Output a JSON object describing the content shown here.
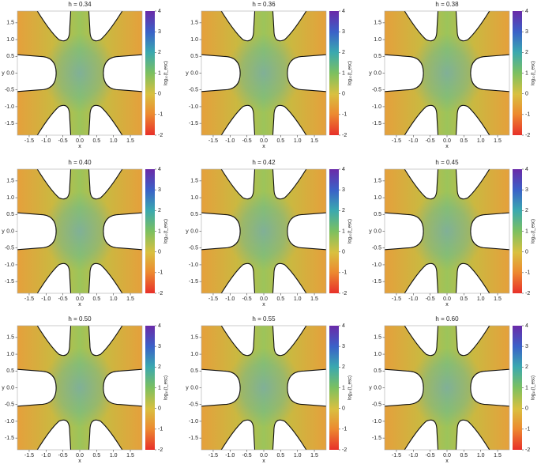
{
  "chart_data": [
    {
      "type": "heatmap",
      "title": "h = 0.34",
      "xlabel": "x",
      "ylabel": "y",
      "xlim": [
        -1.85,
        1.85
      ],
      "ylim": [
        -1.85,
        1.85
      ],
      "xticks": [
        -1.5,
        {
          "value": -1,
          "label": "-1.0"
        },
        -0.5,
        {
          "value": 0,
          "label": "0.0"
        },
        0.5,
        {
          "value": 1,
          "label": "1.0"
        },
        1.5
      ],
      "yticks": [
        -1.5,
        {
          "value": -1,
          "label": "-1.0"
        },
        -0.5,
        {
          "value": 0,
          "label": "0.0"
        },
        0.5,
        {
          "value": 1,
          "label": "1.0"
        },
        1.5
      ],
      "colorbar_label": "log₁₀(t_esc)",
      "clim": [
        -2,
        4
      ],
      "cticks": [
        -2,
        -1,
        0,
        1,
        2,
        3,
        4
      ]
    },
    {
      "type": "heatmap",
      "title": "h = 0.36",
      "xlabel": "x",
      "ylabel": "y",
      "xlim": [
        -1.85,
        1.85
      ],
      "ylim": [
        -1.85,
        1.85
      ],
      "xticks": [
        -1.5,
        {
          "value": -1,
          "label": "-1.0"
        },
        -0.5,
        {
          "value": 0,
          "label": "0.0"
        },
        0.5,
        {
          "value": 1,
          "label": "1.0"
        },
        1.5
      ],
      "yticks": [
        -1.5,
        {
          "value": -1,
          "label": "-1.0"
        },
        -0.5,
        {
          "value": 0,
          "label": "0.0"
        },
        0.5,
        {
          "value": 1,
          "label": "1.0"
        },
        1.5
      ],
      "colorbar_label": "log₁₀(t_esc)",
      "clim": [
        -2,
        4
      ],
      "cticks": [
        -2,
        -1,
        0,
        1,
        2,
        3,
        4
      ]
    },
    {
      "type": "heatmap",
      "title": "h = 0.38",
      "xlabel": "x",
      "ylabel": "y",
      "xlim": [
        -1.85,
        1.85
      ],
      "ylim": [
        -1.85,
        1.85
      ],
      "xticks": [
        -1.5,
        {
          "value": -1,
          "label": "-1.0"
        },
        -0.5,
        {
          "value": 0,
          "label": "0.0"
        },
        0.5,
        {
          "value": 1,
          "label": "1.0"
        },
        1.5
      ],
      "yticks": [
        -1.5,
        {
          "value": -1,
          "label": "-1.0"
        },
        -0.5,
        {
          "value": 0,
          "label": "0.0"
        },
        0.5,
        {
          "value": 1,
          "label": "1.0"
        },
        1.5
      ],
      "colorbar_label": "log₁₀(t_esc)",
      "clim": [
        -2,
        4
      ],
      "cticks": [
        -2,
        -1,
        0,
        1,
        2,
        3,
        4
      ]
    },
    {
      "type": "heatmap",
      "title": "h = 0.40",
      "xlabel": "x",
      "ylabel": "y",
      "xlim": [
        -1.85,
        1.85
      ],
      "ylim": [
        -1.85,
        1.85
      ],
      "xticks": [
        -1.5,
        {
          "value": -1,
          "label": "-1.0"
        },
        -0.5,
        {
          "value": 0,
          "label": "0.0"
        },
        0.5,
        {
          "value": 1,
          "label": "1.0"
        },
        1.5
      ],
      "yticks": [
        -1.5,
        {
          "value": -1,
          "label": "-1.0"
        },
        -0.5,
        {
          "value": 0,
          "label": "0.0"
        },
        0.5,
        {
          "value": 1,
          "label": "1.0"
        },
        1.5
      ],
      "colorbar_label": "log₁₀(t_esc)",
      "clim": [
        -2,
        4
      ],
      "cticks": [
        -2,
        -1,
        0,
        1,
        2,
        3,
        4
      ]
    },
    {
      "type": "heatmap",
      "title": "h = 0.42",
      "xlabel": "x",
      "ylabel": "y",
      "xlim": [
        -1.85,
        1.85
      ],
      "ylim": [
        -1.85,
        1.85
      ],
      "xticks": [
        -1.5,
        {
          "value": -1,
          "label": "-1.0"
        },
        -0.5,
        {
          "value": 0,
          "label": "0.0"
        },
        0.5,
        {
          "value": 1,
          "label": "1.0"
        },
        1.5
      ],
      "yticks": [
        -1.5,
        {
          "value": -1,
          "label": "-1.0"
        },
        -0.5,
        {
          "value": 0,
          "label": "0.0"
        },
        0.5,
        {
          "value": 1,
          "label": "1.0"
        },
        1.5
      ],
      "colorbar_label": "log₁₀(t_esc)",
      "clim": [
        -2,
        4
      ],
      "cticks": [
        -2,
        -1,
        0,
        1,
        2,
        3,
        4
      ]
    },
    {
      "type": "heatmap",
      "title": "h = 0.45",
      "xlabel": "x",
      "ylabel": "y",
      "xlim": [
        -1.85,
        1.85
      ],
      "ylim": [
        -1.85,
        1.85
      ],
      "xticks": [
        -1.5,
        {
          "value": -1,
          "label": "-1.0"
        },
        -0.5,
        {
          "value": 0,
          "label": "0.0"
        },
        0.5,
        {
          "value": 1,
          "label": "1.0"
        },
        1.5
      ],
      "yticks": [
        -1.5,
        {
          "value": -1,
          "label": "-1.0"
        },
        -0.5,
        {
          "value": 0,
          "label": "0.0"
        },
        0.5,
        {
          "value": 1,
          "label": "1.0"
        },
        1.5
      ],
      "colorbar_label": "log₁₀(t_esc)",
      "clim": [
        -2,
        4
      ],
      "cticks": [
        -2,
        -1,
        0,
        1,
        2,
        3,
        4
      ]
    },
    {
      "type": "heatmap",
      "title": "h = 0.50",
      "xlabel": "x",
      "ylabel": "y",
      "xlim": [
        -1.85,
        1.85
      ],
      "ylim": [
        -1.85,
        1.85
      ],
      "xticks": [
        -1.5,
        {
          "value": -1,
          "label": "-1.0"
        },
        -0.5,
        {
          "value": 0,
          "label": "0.0"
        },
        0.5,
        {
          "value": 1,
          "label": "1.0"
        },
        1.5
      ],
      "yticks": [
        -1.5,
        {
          "value": -1,
          "label": "-1.0"
        },
        -0.5,
        {
          "value": 0,
          "label": "0.0"
        },
        0.5,
        {
          "value": 1,
          "label": "1.0"
        },
        1.5
      ],
      "colorbar_label": "log₁₀(t_esc)",
      "clim": [
        -2,
        4
      ],
      "cticks": [
        -2,
        -1,
        0,
        1,
        2,
        3,
        4
      ]
    },
    {
      "type": "heatmap",
      "title": "h = 0.55",
      "xlabel": "x",
      "ylabel": "y",
      "xlim": [
        -1.85,
        1.85
      ],
      "ylim": [
        -1.85,
        1.85
      ],
      "xticks": [
        -1.5,
        {
          "value": -1,
          "label": "-1.0"
        },
        -0.5,
        {
          "value": 0,
          "label": "0.0"
        },
        0.5,
        {
          "value": 1,
          "label": "1.0"
        },
        1.5
      ],
      "yticks": [
        -1.5,
        {
          "value": -1,
          "label": "-1.0"
        },
        -0.5,
        {
          "value": 0,
          "label": "0.0"
        },
        0.5,
        {
          "value": 1,
          "label": "1.0"
        },
        1.5
      ],
      "colorbar_label": "log₁₀(t_esc)",
      "clim": [
        -2,
        4
      ],
      "cticks": [
        -2,
        -1,
        0,
        1,
        2,
        3,
        4
      ]
    },
    {
      "type": "heatmap",
      "title": "h = 0.60",
      "xlabel": "x",
      "ylabel": "y",
      "xlim": [
        -1.85,
        1.85
      ],
      "ylim": [
        -1.85,
        1.85
      ],
      "xticks": [
        -1.5,
        {
          "value": -1,
          "label": "-1.0"
        },
        -0.5,
        {
          "value": 0,
          "label": "0.0"
        },
        0.5,
        {
          "value": 1,
          "label": "1.0"
        },
        1.5
      ],
      "yticks": [
        -1.5,
        {
          "value": -1,
          "label": "-1.0"
        },
        -0.5,
        {
          "value": 0,
          "label": "0.0"
        },
        0.5,
        {
          "value": 1,
          "label": "1.0"
        },
        1.5
      ],
      "colorbar_label": "log₁₀(t_esc)",
      "clim": [
        -2,
        4
      ],
      "cticks": [
        -2,
        -1,
        0,
        1,
        2,
        3,
        4
      ]
    }
  ]
}
